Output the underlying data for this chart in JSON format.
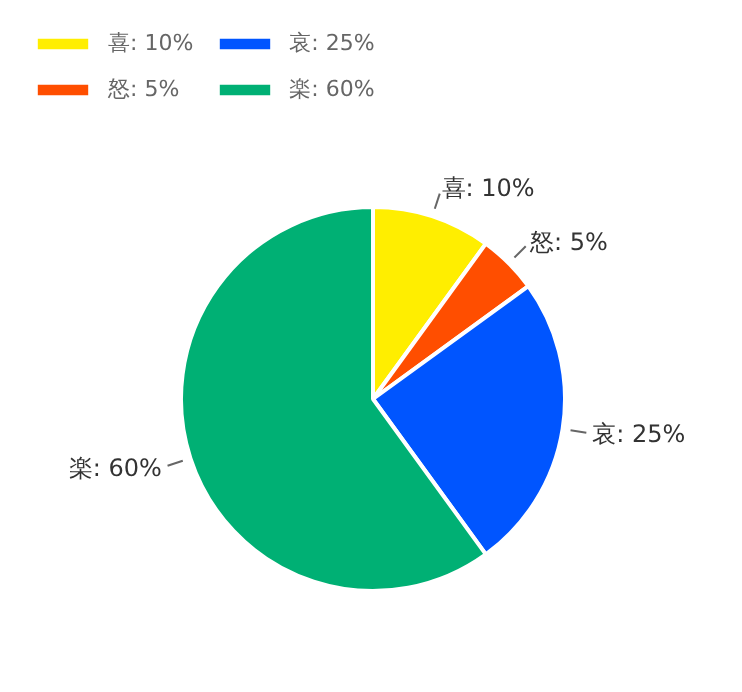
{
  "chart_data": {
    "type": "pie",
    "categories": [
      "喜: 10%",
      "怒: 5%",
      "哀: 25%",
      "楽: 60%"
    ],
    "values": [
      10,
      5,
      25,
      60
    ],
    "colors": [
      "#ffee00",
      "#ff4e00",
      "#0055ff",
      "#00b074"
    ],
    "legend": "top left"
  }
}
